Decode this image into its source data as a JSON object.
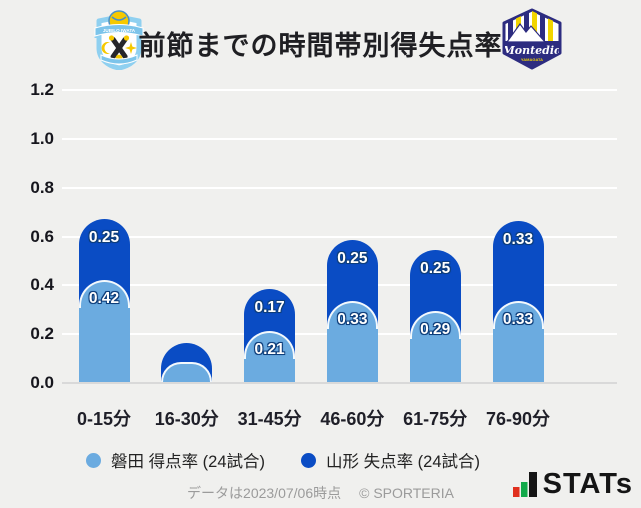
{
  "header": {
    "title": "前節までの時間帯別得失点率",
    "left_logo_name": "ジュビロ磐田",
    "right_logo_name": "モンテディオ山形",
    "left_logo_banner": "JUBILO IWATA",
    "right_logo_script": "Montedio",
    "right_logo_sub": "YAMAGATA"
  },
  "chart_data": {
    "type": "bar",
    "stacked": true,
    "title": "前節までの時間帯別得失点率",
    "categories": [
      "0-15分",
      "16-30分",
      "31-45分",
      "46-60分",
      "61-75分",
      "76-90分"
    ],
    "series": [
      {
        "name": "磐田 得点率 (24試合)",
        "color": "#6babe0",
        "values": [
          0.42,
          0.08,
          0.21,
          0.33,
          0.29,
          0.33
        ],
        "labels": [
          "0.42",
          "",
          "0.21",
          "0.33",
          "0.29",
          "0.33"
        ]
      },
      {
        "name": "山形 失点率 (24試合)",
        "color": "#0a4cc4",
        "values": [
          0.25,
          0.08,
          0.17,
          0.25,
          0.25,
          0.33
        ],
        "labels": [
          "0.25",
          "",
          "0.17",
          "0.25",
          "0.25",
          "0.33"
        ]
      }
    ],
    "ylim": [
      0,
      1.2
    ],
    "yticks": [
      "0.0",
      "0.2",
      "0.4",
      "0.6",
      "0.8",
      "1.0",
      "1.2"
    ],
    "grid": true,
    "legend_position": "bottom"
  },
  "footer": {
    "source_note": "データは2023/07/06時点",
    "copyright": "© SPORTERIA",
    "stats_text": "STATs"
  },
  "colors": {
    "background": "#f0f0ee",
    "gridline": "#ffffff",
    "baseline": "#d9d9d9",
    "series_light": "#6babe0",
    "series_dark": "#0a4cc4",
    "label_outline": "#0d3d7a",
    "stats_red": "#e0301e",
    "stats_green": "#12a94a",
    "text_dark": "#1f1f23",
    "footer_gray": "#9b9b9b"
  }
}
